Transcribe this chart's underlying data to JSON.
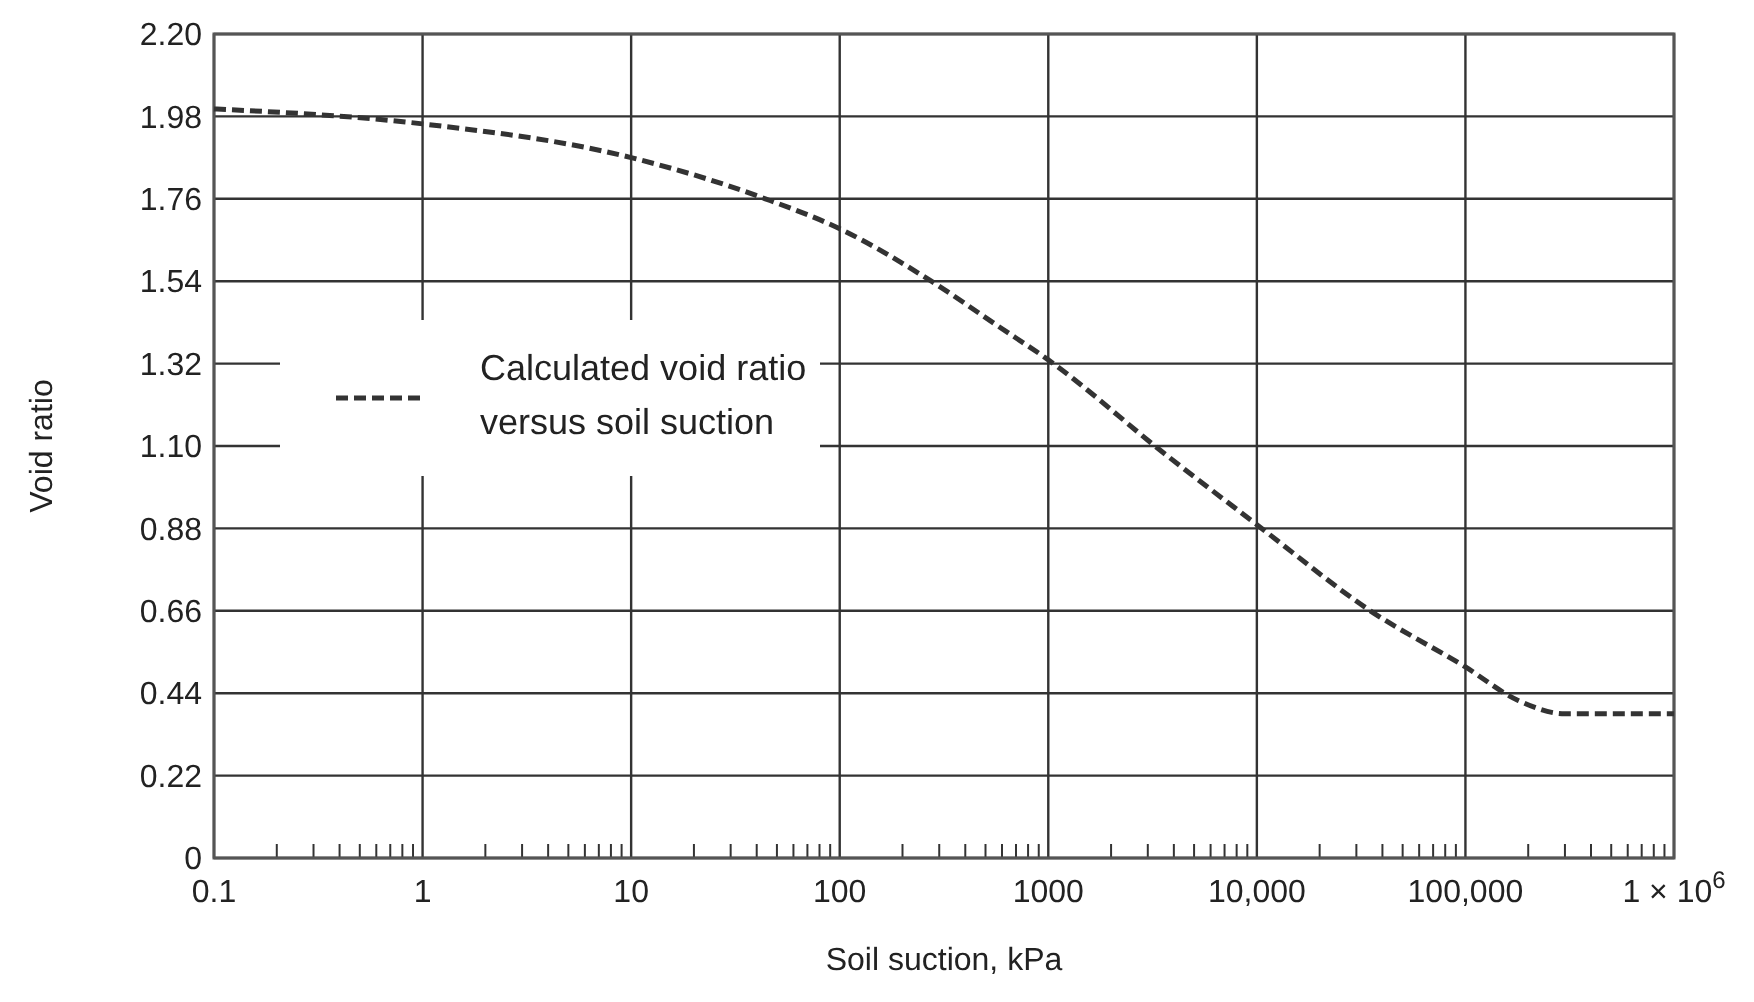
{
  "chart_data": {
    "type": "line",
    "xlabel": "Soil suction, kPa",
    "ylabel": "Void ratio",
    "log": "x",
    "grid": true,
    "legend": "left",
    "line_style": "dashed",
    "marker": "none",
    "x": [
      0.1,
      1,
      10,
      44,
      100,
      275,
      575,
      1000,
      3600,
      10000,
      35000,
      100000,
      180000,
      300000,
      1000000
    ],
    "series": [
      {
        "name": "Calculated void ratio versus soil suction",
        "color": "#333333",
        "values": [
          2.0,
          1.96,
          1.87,
          1.76,
          1.68,
          1.54,
          1.42,
          1.33,
          1.08,
          0.89,
          0.66,
          0.51,
          0.42,
          0.385,
          0.385
        ]
      }
    ],
    "xlim": [
      0.1,
      1000000
    ],
    "xticks": [
      0.1,
      {
        "value": 0.2,
        "label": null
      },
      {
        "value": 0.3,
        "label": null
      },
      {
        "value": 0.4,
        "label": null
      },
      {
        "value": 0.5,
        "label": null
      },
      {
        "value": 0.6,
        "label": null
      },
      {
        "value": 0.7,
        "label": null
      },
      {
        "value": 0.8,
        "label": null
      },
      {
        "value": 0.9,
        "label": null
      },
      1,
      {
        "value": 2,
        "label": null
      },
      {
        "value": 3,
        "label": null
      },
      {
        "value": 4,
        "label": null
      },
      {
        "value": 5,
        "label": null
      },
      {
        "value": 6,
        "label": null
      },
      {
        "value": 7,
        "label": null
      },
      {
        "value": 8,
        "label": null
      },
      {
        "value": 9,
        "label": null
      },
      10,
      {
        "value": 20,
        "label": null
      },
      {
        "value": 30,
        "label": null
      },
      {
        "value": 40,
        "label": null
      },
      {
        "value": 50,
        "label": null
      },
      {
        "value": 60,
        "label": null
      },
      {
        "value": 70,
        "label": null
      },
      {
        "value": 80,
        "label": null
      },
      {
        "value": 90,
        "label": null
      },
      100,
      {
        "value": 200,
        "label": null
      },
      {
        "value": 300,
        "label": null
      },
      {
        "value": 400,
        "label": null
      },
      {
        "value": 500,
        "label": null
      },
      {
        "value": 600,
        "label": null
      },
      {
        "value": 700,
        "label": null
      },
      {
        "value": 800,
        "label": null
      },
      {
        "value": 900,
        "label": null
      },
      1000,
      {
        "value": 2000,
        "label": null
      },
      {
        "value": 3000,
        "label": null
      },
      {
        "value": 4000,
        "label": null
      },
      {
        "value": 5000,
        "label": null
      },
      {
        "value": 6000,
        "label": null
      },
      {
        "value": 7000,
        "label": null
      },
      {
        "value": 8000,
        "label": null
      },
      {
        "value": 9000,
        "label": null
      },
      {
        "value": 10000,
        "label": "10,000"
      },
      {
        "value": 20000,
        "label": null
      },
      {
        "value": 30000,
        "label": null
      },
      {
        "value": 40000,
        "label": null
      },
      {
        "value": 50000,
        "label": null
      },
      {
        "value": 60000,
        "label": null
      },
      {
        "value": 70000,
        "label": null
      },
      {
        "value": 80000,
        "label": null
      },
      {
        "value": 90000,
        "label": null
      },
      {
        "value": 100000,
        "label": "100,000"
      },
      {
        "value": 200000,
        "label": null
      },
      {
        "value": 300000,
        "label": null
      },
      {
        "value": 400000,
        "label": null
      },
      {
        "value": 500000,
        "label": null
      },
      {
        "value": 600000,
        "label": null
      },
      {
        "value": 700000,
        "label": null
      },
      {
        "value": 800000,
        "label": null
      },
      {
        "value": 900000,
        "label": null
      },
      {
        "value": 1000000,
        "label": "1 × 10$^{6}$"
      }
    ],
    "ylim": [
      0,
      2.2
    ],
    "yticks": [
      0,
      0.22,
      0.44,
      0.66,
      0.88,
      {
        "value": 1.1,
        "label": "1.10"
      },
      1.32,
      1.54,
      1.76,
      1.98,
      {
        "value": 2.2,
        "label": "2.20"
      }
    ]
  }
}
